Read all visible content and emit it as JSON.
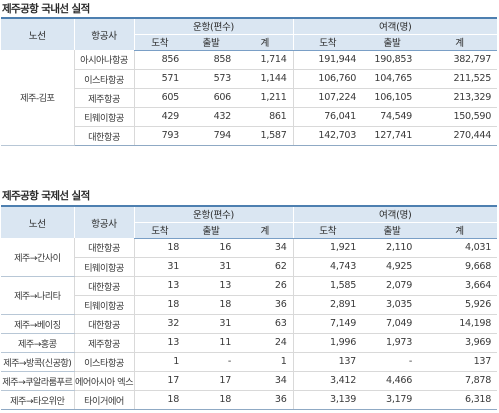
{
  "domestic": {
    "title": "제주공항 국내선 실적",
    "headers": {
      "route": "노선",
      "airline": "항공사",
      "flights_group": "운항(편수)",
      "passengers_group": "여객(명)",
      "arrival": "도착",
      "departure": "출발",
      "total": "계"
    },
    "groups": [
      {
        "route": "제주-김포",
        "rows": [
          {
            "airline": "아시아나항공",
            "f_arr": "856",
            "f_dep": "858",
            "f_total": "1,714",
            "p_arr": "191,944",
            "p_dep": "190,853",
            "p_total": "382,797"
          },
          {
            "airline": "이스타항공",
            "f_arr": "571",
            "f_dep": "573",
            "f_total": "1,144",
            "p_arr": "106,760",
            "p_dep": "104,765",
            "p_total": "211,525"
          },
          {
            "airline": "제주항공",
            "f_arr": "605",
            "f_dep": "606",
            "f_total": "1,211",
            "p_arr": "107,224",
            "p_dep": "106,105",
            "p_total": "213,329"
          },
          {
            "airline": "티웨이항공",
            "f_arr": "429",
            "f_dep": "432",
            "f_total": "861",
            "p_arr": "76,041",
            "p_dep": "74,549",
            "p_total": "150,590"
          },
          {
            "airline": "대한항공",
            "f_arr": "793",
            "f_dep": "794",
            "f_total": "1,587",
            "p_arr": "142,703",
            "p_dep": "127,741",
            "p_total": "270,444"
          }
        ]
      }
    ]
  },
  "international": {
    "title": "제주공항 국제선 실적",
    "headers": {
      "route": "노선",
      "airline": "항공사",
      "flights_group": "운항(편수)",
      "passengers_group": "여객(명)",
      "arrival": "도착",
      "departure": "출발",
      "total": "계"
    },
    "groups": [
      {
        "route": "제주→간사이",
        "rows": [
          {
            "airline": "대한항공",
            "f_arr": "18",
            "f_dep": "16",
            "f_total": "34",
            "p_arr": "1,921",
            "p_dep": "2,110",
            "p_total": "4,031"
          },
          {
            "airline": "티웨이항공",
            "f_arr": "31",
            "f_dep": "31",
            "f_total": "62",
            "p_arr": "4,743",
            "p_dep": "4,925",
            "p_total": "9,668"
          }
        ]
      },
      {
        "route": "제주→나리타",
        "rows": [
          {
            "airline": "대한항공",
            "f_arr": "13",
            "f_dep": "13",
            "f_total": "26",
            "p_arr": "1,585",
            "p_dep": "2,079",
            "p_total": "3,664"
          },
          {
            "airline": "티웨이항공",
            "f_arr": "18",
            "f_dep": "18",
            "f_total": "36",
            "p_arr": "2,891",
            "p_dep": "3,035",
            "p_total": "5,926"
          }
        ]
      },
      {
        "route": "제주→베이징",
        "rows": [
          {
            "airline": "대한항공",
            "f_arr": "32",
            "f_dep": "31",
            "f_total": "63",
            "p_arr": "7,149",
            "p_dep": "7,049",
            "p_total": "14,198"
          }
        ]
      },
      {
        "route": "제주→홍콩",
        "rows": [
          {
            "airline": "제주항공",
            "f_arr": "13",
            "f_dep": "11",
            "f_total": "24",
            "p_arr": "1,996",
            "p_dep": "1,973",
            "p_total": "3,969"
          }
        ]
      },
      {
        "route": "제주→방콕(신공항)",
        "rows": [
          {
            "airline": "이스타항공",
            "f_arr": "1",
            "f_dep": "-",
            "f_total": "1",
            "p_arr": "137",
            "p_dep": "-",
            "p_total": "137"
          }
        ]
      },
      {
        "route": "제주→쿠알라룸푸르",
        "rows": [
          {
            "airline": "에어아시아 엑스",
            "f_arr": "17",
            "f_dep": "17",
            "f_total": "34",
            "p_arr": "3,412",
            "p_dep": "4,466",
            "p_total": "7,878"
          }
        ]
      },
      {
        "route": "제주→타오위안",
        "rows": [
          {
            "airline": "타이거에어",
            "f_arr": "18",
            "f_dep": "18",
            "f_total": "36",
            "p_arr": "3,139",
            "p_dep": "3,179",
            "p_total": "6,318"
          }
        ]
      }
    ]
  }
}
